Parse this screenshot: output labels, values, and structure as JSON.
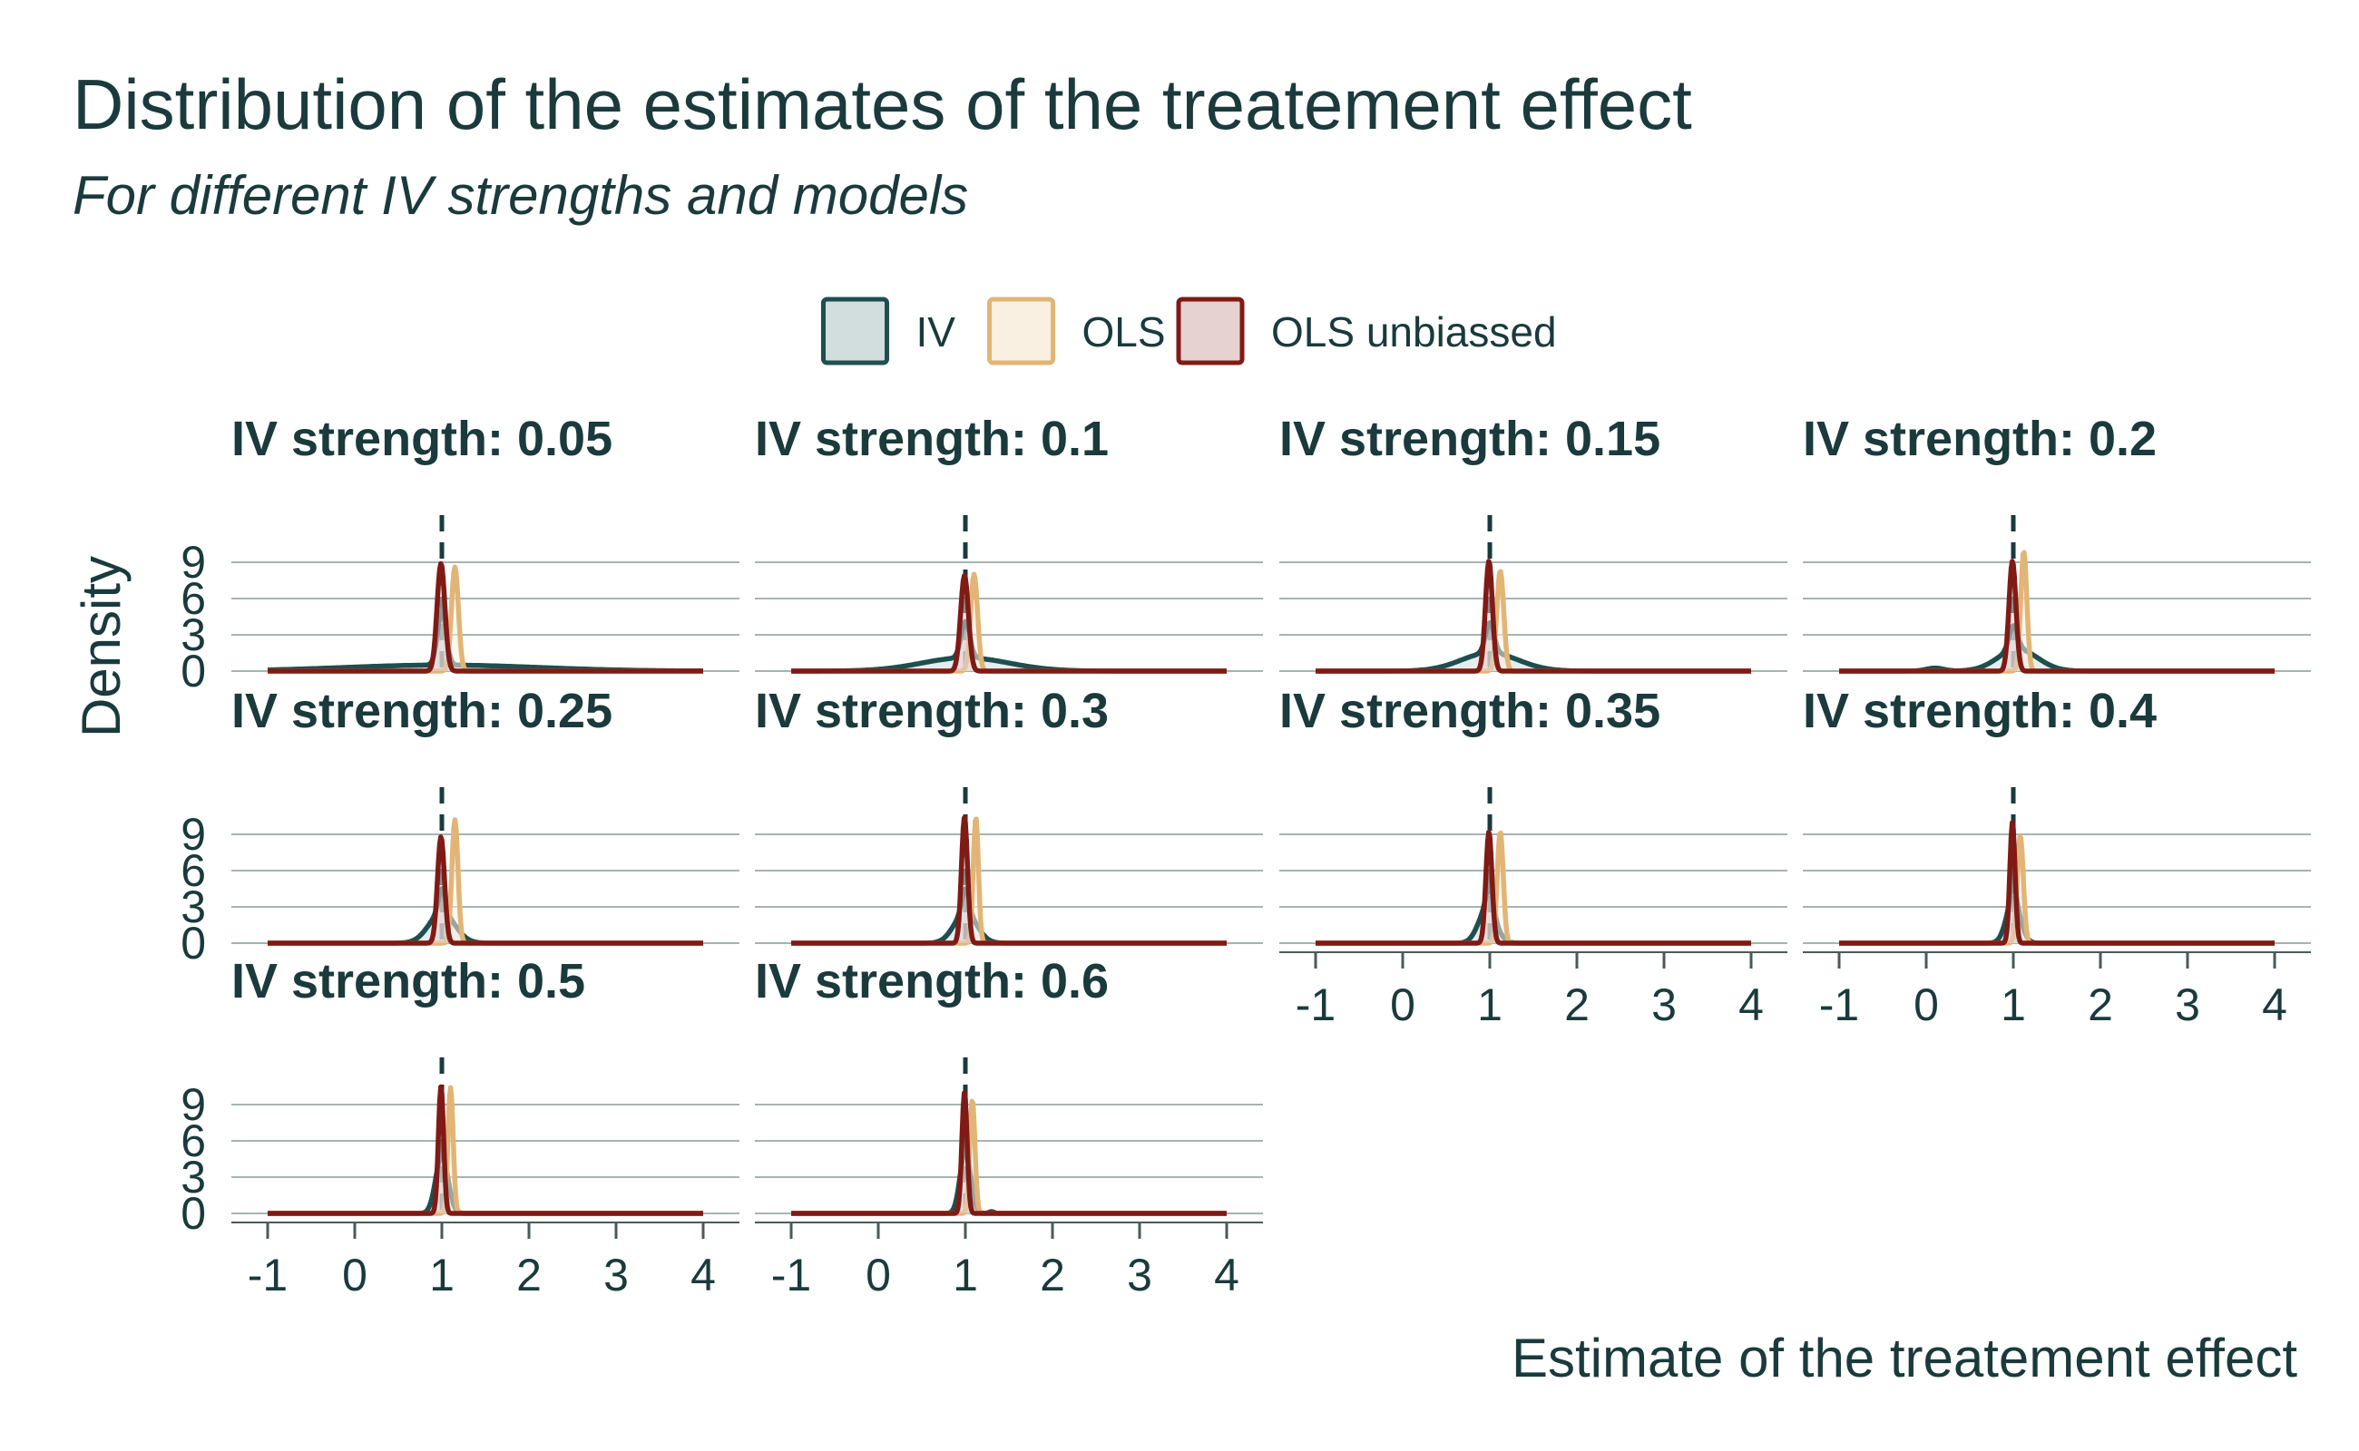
{
  "chart_data": {
    "type": "density",
    "title": "Distribution of the estimates of the treatement effect",
    "subtitle": "For different IV strengths and models",
    "xlabel": "Estimate of the treatement effect",
    "ylabel": "Density",
    "xlim": [
      -1,
      4
    ],
    "ylim": [
      0,
      10.5
    ],
    "x_ticks": [
      -1,
      0,
      1,
      2,
      3,
      4
    ],
    "x_tick_labels": [
      "-1",
      "0",
      "1",
      "2",
      "3",
      "4"
    ],
    "y_ticks": [
      0,
      3,
      6,
      9
    ],
    "y_tick_labels": [
      "0",
      "3",
      "6",
      "9"
    ],
    "reference_line_x": 1,
    "grid": "horizontal",
    "legend_position": "top",
    "colors": {
      "IV": "#1f4e4f",
      "OLS": "#e2b576",
      "OLS unbiassed": "#801a15",
      "text": "#1a3a3c",
      "grid": "#a8b3b3"
    },
    "legend": [
      {
        "key": "IV",
        "label": "IV",
        "stroke": "#1f4e4f",
        "fill": "#d2dede"
      },
      {
        "key": "OLS",
        "label": "OLS",
        "stroke": "#e2b576",
        "fill": "#faf0e2"
      },
      {
        "key": "OLS unbiassed",
        "label": "OLS unbiassed",
        "stroke": "#801a15",
        "fill": "#e6d2d0"
      }
    ],
    "panels": [
      {
        "label": "IV strength: 0.05",
        "series": [
          {
            "name": "IV",
            "components": [
              [
                1.0,
                1.1,
                0.5
              ],
              [
                1.0,
                0.05,
                4.5
              ]
            ]
          },
          {
            "name": "OLS",
            "components": [
              [
                1.15,
                0.04,
                8.6
              ]
            ]
          },
          {
            "name": "OLS unbiassed",
            "components": [
              [
                0.99,
                0.045,
                8.9
              ]
            ]
          }
        ]
      },
      {
        "label": "IV strength: 0.1",
        "series": [
          {
            "name": "IV",
            "components": [
              [
                1.0,
                0.5,
                1.1
              ],
              [
                1.0,
                0.05,
                3.0
              ]
            ]
          },
          {
            "name": "OLS",
            "components": [
              [
                1.1,
                0.04,
                8.0
              ]
            ]
          },
          {
            "name": "OLS unbiassed",
            "components": [
              [
                0.99,
                0.045,
                7.9
              ]
            ]
          }
        ]
      },
      {
        "label": "IV strength: 0.15",
        "series": [
          {
            "name": "IV",
            "components": [
              [
                1.0,
                0.33,
                1.5
              ],
              [
                1.0,
                0.05,
                2.5
              ]
            ]
          },
          {
            "name": "OLS",
            "components": [
              [
                1.12,
                0.04,
                8.3
              ]
            ]
          },
          {
            "name": "OLS unbiassed",
            "components": [
              [
                0.99,
                0.04,
                9.1
              ]
            ]
          }
        ]
      },
      {
        "label": "IV strength: 0.2",
        "series": [
          {
            "name": "IV",
            "components": [
              [
                1.05,
                0.23,
                1.8
              ],
              [
                1.0,
                0.05,
                2.0
              ],
              [
                0.1,
                0.1,
                0.25
              ]
            ]
          },
          {
            "name": "OLS",
            "components": [
              [
                1.12,
                0.035,
                9.9
              ]
            ]
          },
          {
            "name": "OLS unbiassed",
            "components": [
              [
                0.99,
                0.04,
                9.1
              ]
            ]
          }
        ]
      },
      {
        "label": "IV strength: 0.25",
        "series": [
          {
            "name": "IV",
            "components": [
              [
                1.0,
                0.15,
                2.5
              ],
              [
                1.0,
                0.04,
                2.0
              ]
            ]
          },
          {
            "name": "OLS",
            "components": [
              [
                1.15,
                0.035,
                10.2
              ]
            ]
          },
          {
            "name": "OLS unbiassed",
            "components": [
              [
                0.99,
                0.04,
                8.8
              ]
            ]
          }
        ]
      },
      {
        "label": "IV strength: 0.3",
        "series": [
          {
            "name": "IV",
            "components": [
              [
                1.0,
                0.13,
                2.5
              ],
              [
                1.0,
                0.04,
                2.0
              ]
            ]
          },
          {
            "name": "OLS",
            "components": [
              [
                1.12,
                0.03,
                10.4
              ]
            ]
          },
          {
            "name": "OLS unbiassed",
            "components": [
              [
                0.99,
                0.035,
                10.4
              ]
            ]
          }
        ]
      },
      {
        "label": "IV strength: 0.35",
        "series": [
          {
            "name": "IV",
            "components": [
              [
                0.97,
                0.1,
                2.8
              ],
              [
                1.0,
                0.04,
                2.0
              ]
            ]
          },
          {
            "name": "OLS",
            "components": [
              [
                1.12,
                0.035,
                9.2
              ]
            ]
          },
          {
            "name": "OLS unbiassed",
            "components": [
              [
                0.99,
                0.035,
                9.2
              ]
            ]
          }
        ]
      },
      {
        "label": "IV strength: 0.4",
        "series": [
          {
            "name": "IV",
            "components": [
              [
                1.0,
                0.08,
                3.5
              ],
              [
                1.0,
                0.03,
                1.5
              ]
            ]
          },
          {
            "name": "OLS",
            "components": [
              [
                1.08,
                0.035,
                8.9
              ]
            ]
          },
          {
            "name": "OLS unbiassed",
            "components": [
              [
                0.99,
                0.03,
                10.0
              ]
            ]
          }
        ]
      },
      {
        "label": "IV strength: 0.5",
        "series": [
          {
            "name": "IV",
            "components": [
              [
                1.0,
                0.07,
                4.8
              ]
            ]
          },
          {
            "name": "OLS",
            "components": [
              [
                1.1,
                0.03,
                10.4
              ]
            ]
          },
          {
            "name": "OLS unbiassed",
            "components": [
              [
                0.99,
                0.03,
                10.5
              ]
            ]
          }
        ]
      },
      {
        "label": "IV strength: 0.6",
        "series": [
          {
            "name": "IV",
            "components": [
              [
                1.0,
                0.06,
                5.2
              ],
              [
                1.3,
                0.03,
                0.15
              ]
            ]
          },
          {
            "name": "OLS",
            "components": [
              [
                1.08,
                0.03,
                9.4
              ]
            ]
          },
          {
            "name": "OLS unbiassed",
            "components": [
              [
                0.99,
                0.03,
                10.0
              ]
            ]
          }
        ]
      }
    ]
  }
}
